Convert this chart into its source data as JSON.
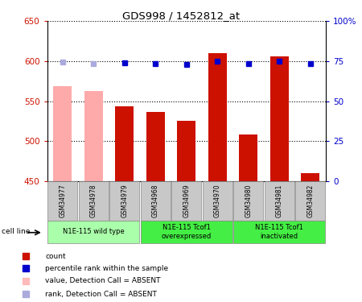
{
  "title": "GDS998 / 1452812_at",
  "samples": [
    "GSM34977",
    "GSM34978",
    "GSM34979",
    "GSM34968",
    "GSM34969",
    "GSM34970",
    "GSM34980",
    "GSM34981",
    "GSM34982"
  ],
  "bar_values": [
    569,
    563,
    544,
    537,
    525,
    610,
    508,
    606,
    460
  ],
  "bar_colors": [
    "#ffaaaa",
    "#ffaaaa",
    "#cc1100",
    "#cc1100",
    "#cc1100",
    "#cc1100",
    "#cc1100",
    "#cc1100",
    "#cc1100"
  ],
  "dot_values": [
    74.5,
    73.5,
    74,
    73.5,
    73,
    75,
    73.5,
    74.8,
    73.5
  ],
  "dot_absent": [
    true,
    true,
    false,
    false,
    false,
    false,
    false,
    false,
    false
  ],
  "ylim_left": [
    450,
    650
  ],
  "ylim_right": [
    0,
    100
  ],
  "yticks_left": [
    450,
    500,
    550,
    600,
    650
  ],
  "ytick_labels_right": [
    "0",
    "25",
    "50",
    "75",
    "100%"
  ],
  "group_configs": [
    {
      "start": 0,
      "end": 2,
      "label": "N1E-115 wild type",
      "color": "#aaffaa"
    },
    {
      "start": 3,
      "end": 5,
      "label": "N1E-115 Tcof1\noverexpressed",
      "color": "#44ee44"
    },
    {
      "start": 6,
      "end": 8,
      "label": "N1E-115 Tcof1\ninactivated",
      "color": "#44ee44"
    }
  ],
  "cell_line_label": "cell line",
  "legend_items": [
    {
      "color": "#cc1100",
      "label": "count"
    },
    {
      "color": "#0000cc",
      "label": "percentile rank within the sample"
    },
    {
      "color": "#ffbbbb",
      "label": "value, Detection Call = ABSENT"
    },
    {
      "color": "#aaaadd",
      "label": "rank, Detection Call = ABSENT"
    }
  ],
  "bar_width": 0.6,
  "tick_color_left": "#cc1100",
  "tick_color_right": "#0000cc",
  "dot_color_normal": "#0000cc",
  "dot_color_absent": "#aaaadd",
  "sample_box_color": "#c8c8c8",
  "sample_box_edge": "#888888"
}
